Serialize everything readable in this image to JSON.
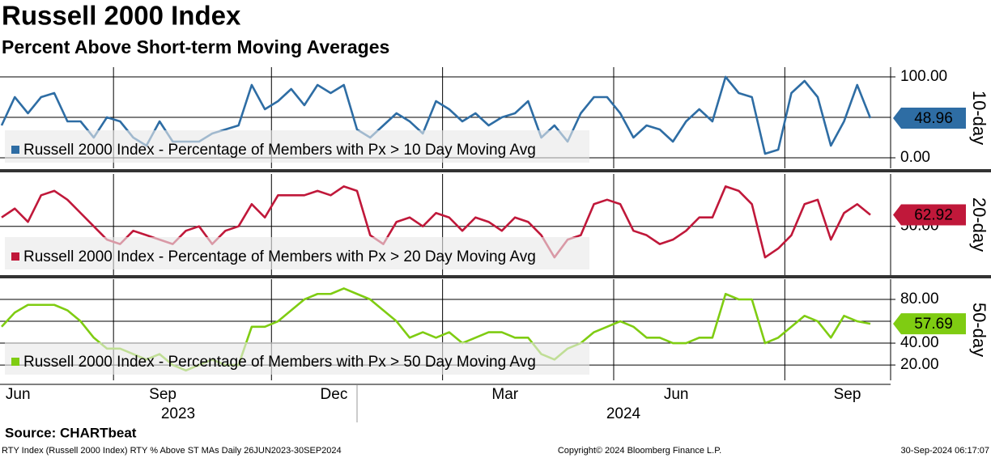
{
  "header": {
    "title": "Russell 2000 Index",
    "subtitle": "Percent Above Short-term Moving Averages"
  },
  "chart_data": [
    {
      "type": "line",
      "ylabel": "10-day",
      "ylim": [
        -13,
        112
      ],
      "yticks": [
        {
          "value": 0,
          "label": "0.00"
        },
        {
          "value": 100,
          "label": "100.00"
        }
      ],
      "ygrid": [
        50
      ],
      "series": [
        {
          "name": "Russell 2000 Index - Percentage of Members with Px > 10 Day Moving Avg",
          "color": "#2e6da4",
          "values": [
            40,
            75,
            55,
            75,
            80,
            45,
            45,
            25,
            50,
            45,
            25,
            15,
            45,
            20,
            20,
            20,
            30,
            35,
            40,
            90,
            60,
            70,
            85,
            65,
            90,
            80,
            90,
            35,
            25,
            40,
            55,
            45,
            30,
            70,
            60,
            45,
            55,
            40,
            50,
            55,
            70,
            25,
            40,
            20,
            55,
            75,
            75,
            55,
            25,
            40,
            35,
            20,
            45,
            60,
            45,
            100,
            80,
            75,
            5,
            10,
            80,
            95,
            75,
            15,
            45,
            90,
            48.96
          ]
        }
      ]
    },
    {
      "type": "line",
      "ylabel": "20-day",
      "ylim": [
        -5,
        109
      ],
      "yticks": [
        {
          "value": 50,
          "label": "50.00"
        }
      ],
      "ygrid": [],
      "series": [
        {
          "name": "Russell 2000 Index - Percentage of Members with Px > 20 Day Moving Avg",
          "color": "#c0183a",
          "values": [
            60,
            70,
            55,
            85,
            90,
            80,
            65,
            50,
            35,
            30,
            45,
            40,
            35,
            30,
            45,
            50,
            30,
            45,
            50,
            75,
            60,
            85,
            85,
            85,
            90,
            85,
            95,
            90,
            40,
            30,
            55,
            60,
            50,
            65,
            60,
            45,
            60,
            55,
            45,
            60,
            55,
            40,
            15,
            35,
            40,
            75,
            80,
            75,
            45,
            40,
            30,
            35,
            45,
            60,
            60,
            95,
            90,
            75,
            15,
            25,
            40,
            75,
            80,
            35,
            65,
            75,
            62.92
          ]
        }
      ]
    },
    {
      "type": "line",
      "ylabel": "50-day",
      "ylim": [
        6,
        98.5
      ],
      "yticks": [
        {
          "value": 20,
          "label": "20.00"
        },
        {
          "value": 40,
          "label": "40.00"
        },
        {
          "value": 80,
          "label": "80.00"
        }
      ],
      "ygrid": [
        60
      ],
      "categories": [
        null,
        "Jun",
        null,
        null,
        null,
        null,
        null,
        null,
        null,
        null,
        null,
        null,
        "Sep",
        null,
        null,
        null,
        null,
        null,
        null,
        null,
        null,
        null,
        null,
        null,
        null,
        "Dec",
        null,
        null,
        null,
        null,
        null,
        null,
        null,
        null,
        null,
        null,
        null,
        null,
        "Mar",
        null,
        null,
        null,
        null,
        null,
        null,
        null,
        null,
        null,
        null,
        null,
        null,
        "Jun",
        null,
        null,
        null,
        null,
        null,
        null,
        null,
        null,
        null,
        null,
        null,
        null,
        "Sep",
        null,
        null
      ],
      "years": [
        "2023",
        "2024"
      ],
      "series": [
        {
          "name": "Russell 2000 Index - Percentage of Members with Px > 50 Day Moving Avg",
          "color": "#7fcc12",
          "values": [
            55,
            68,
            75,
            75,
            75,
            70,
            60,
            45,
            35,
            35,
            30,
            25,
            30,
            20,
            15,
            20,
            25,
            20,
            20,
            55,
            55,
            60,
            70,
            80,
            85,
            85,
            90,
            85,
            80,
            70,
            60,
            45,
            50,
            45,
            50,
            40,
            45,
            50,
            50,
            45,
            45,
            30,
            25,
            35,
            40,
            50,
            55,
            60,
            55,
            45,
            45,
            40,
            40,
            45,
            45,
            85,
            80,
            80,
            40,
            45,
            55,
            65,
            60,
            45,
            65,
            60,
            57.69
          ]
        }
      ]
    }
  ],
  "footer": {
    "source": "Source: CHARTbeat",
    "ticker": "RTY Index (Russell 2000 Index) RTY % Above ST MAs  Daily 26JUN2023-30SEP2024",
    "copyright": "Copyright© 2024 Bloomberg Finance L.P.",
    "timestamp": "30-Sep-2024 06:17:07"
  }
}
